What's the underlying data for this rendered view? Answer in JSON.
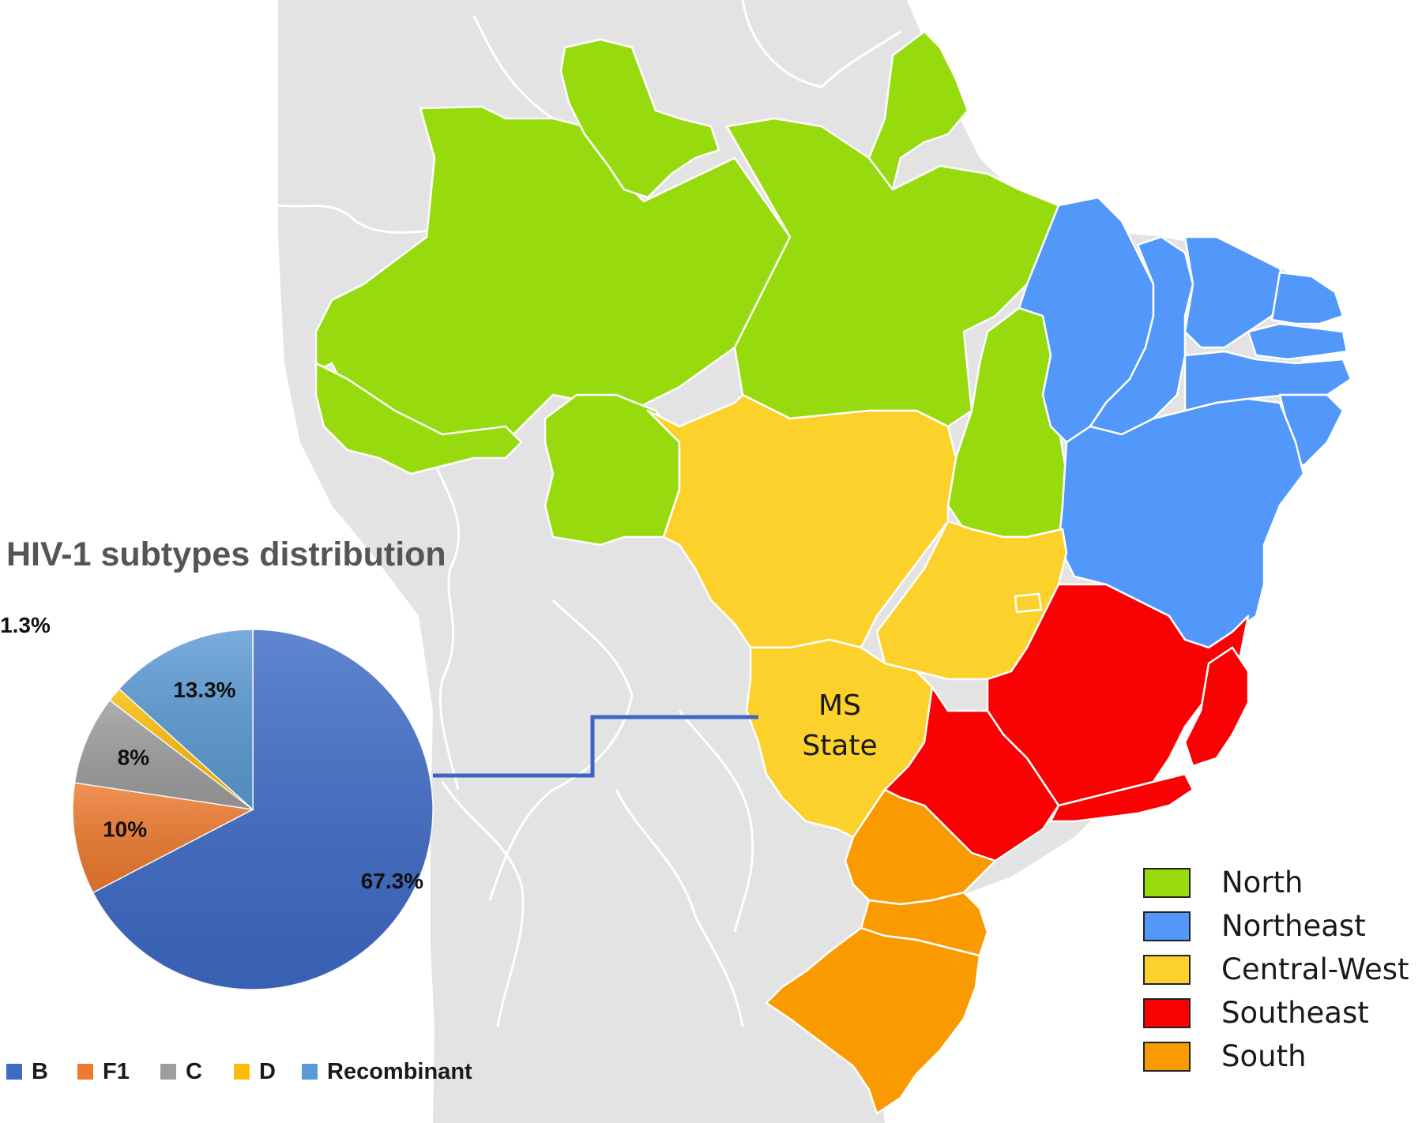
{
  "title": "HIV-1 subtypes distribution",
  "map_label": {
    "line1": "MS",
    "line2": "State"
  },
  "map_legend": [
    {
      "label": "North",
      "color": "#97db0f"
    },
    {
      "label": "Northeast",
      "color": "#5198fa"
    },
    {
      "label": "Central-West",
      "color": "#fcd12c"
    },
    {
      "label": "Southeast",
      "color": "#fa0204"
    },
    {
      "label": "South",
      "color": "#fa9a01"
    }
  ],
  "colors": {
    "background_land": "#e3e3e3",
    "connector": "#3d66c4"
  },
  "chart_data": {
    "type": "pie",
    "title": "HIV-1 subtypes distribution",
    "slices": [
      {
        "name": "B",
        "value": 67.3,
        "label": "67.3%",
        "color": "#3e6bc7"
      },
      {
        "name": "F1",
        "value": 10,
        "label": "10%",
        "color": "#ee7a2f"
      },
      {
        "name": "C",
        "value": 8,
        "label": "8%",
        "color": "#9e9e9e"
      },
      {
        "name": "D",
        "value": 1.3,
        "label": "1.3%",
        "color": "#fbbd08"
      },
      {
        "name": "Recombinant",
        "value": 13.3,
        "label": "13.3%",
        "color": "#5b9bd5"
      }
    ],
    "legend": [
      "B",
      "F1",
      "C",
      "D",
      "Recombinant"
    ],
    "legend_position": "bottom"
  }
}
